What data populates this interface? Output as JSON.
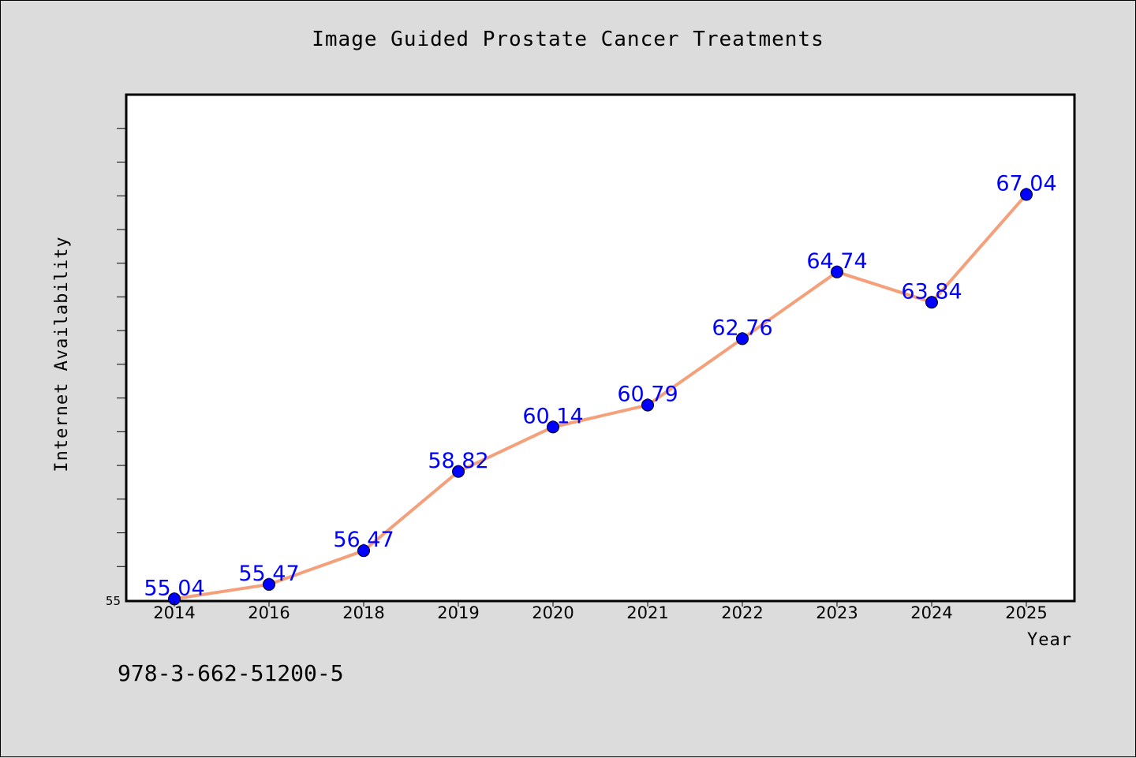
{
  "chart_data": {
    "type": "line",
    "title": "Image Guided Prostate Cancer Treatments",
    "xlabel": "Year",
    "ylabel": "Internet Availability",
    "categories": [
      "2014",
      "2016",
      "2018",
      "2019",
      "2020",
      "2021",
      "2022",
      "2023",
      "2024",
      "2025"
    ],
    "series": [
      {
        "values": [
          55.04,
          55.47,
          56.47,
          58.82,
          60.14,
          60.79,
          62.76,
          64.74,
          63.84,
          67.04
        ],
        "data_labels": [
          "55.04",
          "55.47",
          "56.47",
          "58.82",
          "60.14",
          "60.79",
          "62.76",
          "64.74",
          "63.84",
          "67.04"
        ]
      }
    ],
    "ylim": [
      55,
      70
    ],
    "yticks_labeled": [
      "55"
    ],
    "grid": false,
    "colors": {
      "line": "#f4a07a",
      "marker": "#0000ff",
      "data_label": "#0000ff",
      "plot_bg": "#ffffff",
      "figure_bg": "#dcdcdc"
    }
  },
  "footer": {
    "id_text": "978-3-662-51200-5"
  }
}
